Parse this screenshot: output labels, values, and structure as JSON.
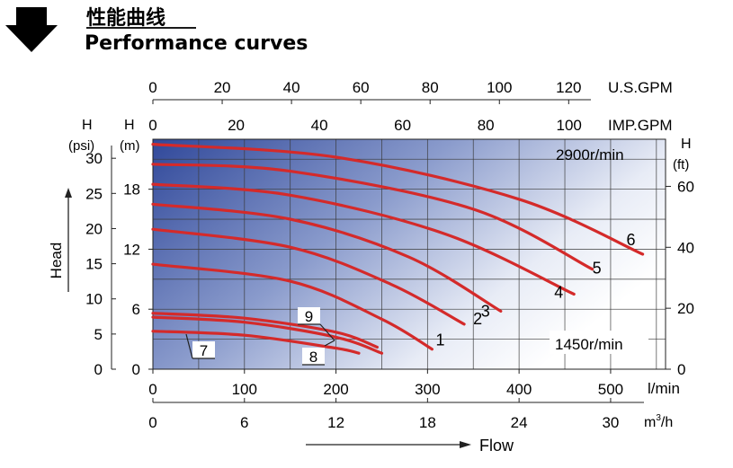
{
  "header": {
    "title_cn": "性能曲线",
    "title_en": "Performance curves",
    "arrow_color": "#1f4a9b"
  },
  "chart_data": {
    "type": "line",
    "x": {
      "unit": "l/min",
      "range": [
        0,
        560
      ],
      "ticks": [
        0,
        100,
        200,
        300,
        400,
        500
      ]
    },
    "y": {
      "unit": "(m)",
      "axis_prefix": "H",
      "range": [
        0,
        23
      ],
      "ticks": [
        0,
        6,
        12,
        18
      ]
    },
    "secondary_axes": {
      "us_gpm": {
        "label": "U.S.GPM",
        "ticks": [
          0,
          20,
          40,
          60,
          80,
          100,
          120
        ]
      },
      "imp_gpm": {
        "label": "IMP.GPM",
        "ticks": [
          0,
          20,
          40,
          60,
          80,
          100
        ]
      },
      "m3h": {
        "label_main": "m",
        "label_sup": "3",
        "label_end": "/h",
        "ticks": [
          0,
          6,
          12,
          18,
          24,
          30
        ]
      },
      "psi": {
        "label_h": "H",
        "unit": "(psi)",
        "ticks": [
          0,
          5,
          10,
          15,
          20,
          25,
          30
        ]
      },
      "ft": {
        "label_h": "H",
        "unit": "(ft)",
        "ticks": [
          0,
          20,
          40,
          60
        ]
      }
    },
    "axis_titles": {
      "head": "Head",
      "flow": "Flow"
    },
    "speed_labels": {
      "high": "2900r/min",
      "low": "1450r/min"
    },
    "grid": true,
    "line_color": "#d42a2a",
    "series": [
      {
        "name": "1",
        "x": [
          0,
          150,
          250,
          305
        ],
        "y": [
          10.5,
          8.8,
          5.0,
          2.0
        ]
      },
      {
        "name": "2",
        "x": [
          0,
          150,
          260,
          340
        ],
        "y": [
          14.0,
          12.2,
          8.5,
          4.5
        ]
      },
      {
        "name": "3",
        "x": [
          0,
          150,
          280,
          380
        ],
        "y": [
          16.5,
          15.0,
          11.2,
          5.8
        ]
      },
      {
        "name": "4",
        "x": [
          0,
          150,
          320,
          460
        ],
        "y": [
          18.5,
          17.4,
          13.5,
          7.5
        ]
      },
      {
        "name": "5",
        "x": [
          0,
          150,
          350,
          480
        ],
        "y": [
          20.5,
          19.8,
          16.0,
          10.0
        ]
      },
      {
        "name": "6",
        "x": [
          0,
          200,
          400,
          535
        ],
        "y": [
          22.5,
          21.2,
          17.0,
          11.5
        ]
      },
      {
        "name": "7",
        "x": [
          0,
          100,
          200,
          225
        ],
        "y": [
          3.8,
          3.4,
          2.1,
          1.6
        ]
      },
      {
        "name": "8",
        "x": [
          0,
          100,
          200,
          250
        ],
        "y": [
          5.2,
          4.7,
          3.2,
          1.6
        ]
      },
      {
        "name": "9",
        "x": [
          0,
          100,
          200,
          245
        ],
        "y": [
          5.6,
          5.1,
          3.7,
          2.2
        ]
      }
    ]
  }
}
